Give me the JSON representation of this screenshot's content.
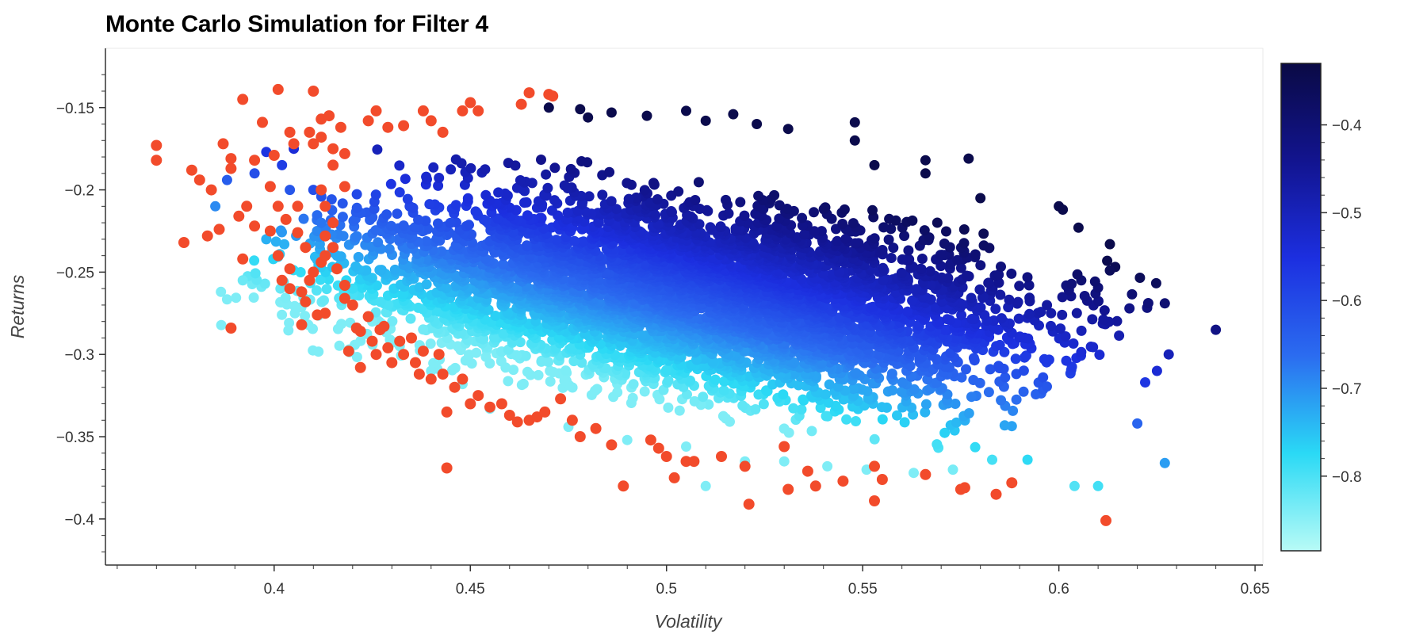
{
  "chart_data": {
    "type": "scatter",
    "title": "Monte Carlo Simulation for Filter 4",
    "xlabel": "Volatility",
    "ylabel": "Returns",
    "xlim": [
      0.357,
      0.652
    ],
    "ylim": [
      -0.428,
      -0.114
    ],
    "x_ticks": [
      0.4,
      0.45,
      0.5,
      0.55,
      0.6,
      0.65
    ],
    "x_tick_labels": [
      "0.4",
      "0.45",
      "0.5",
      "0.55",
      "0.6",
      "0.65"
    ],
    "y_ticks": [
      -0.15,
      -0.2,
      -0.25,
      -0.3,
      -0.35,
      -0.4
    ],
    "y_tick_labels": [
      "−0.15",
      "−0.2",
      "−0.25",
      "−0.3",
      "−0.35",
      "−0.4"
    ],
    "grid": false,
    "legend": "none",
    "colorbar": {
      "orientation": "vertical",
      "placement": "right",
      "range": [
        -0.885,
        -0.33
      ],
      "ticks": [
        -0.4,
        -0.5,
        -0.6,
        -0.7,
        -0.8
      ],
      "tick_labels": [
        "−0.4",
        "−0.5",
        "−0.6",
        "−0.7",
        "−0.8"
      ],
      "colors": [
        "#b8fbf6",
        "#2ad9f5",
        "#2b6cf0",
        "#1c2fe0",
        "#12148f",
        "#0a0a45"
      ]
    },
    "series": [
      {
        "marker_color": "colormap",
        "description": "simulated portfolios, colored by colorbar value",
        "center": [
          0.505,
          -0.265
        ],
        "points": [
          [
            0.47,
            -0.15
          ],
          [
            0.478,
            -0.151
          ],
          [
            0.48,
            -0.156
          ],
          [
            0.486,
            -0.153
          ],
          [
            0.495,
            -0.155
          ],
          [
            0.505,
            -0.152
          ],
          [
            0.51,
            -0.158
          ],
          [
            0.517,
            -0.154
          ],
          [
            0.523,
            -0.16
          ],
          [
            0.531,
            -0.163
          ],
          [
            0.548,
            -0.159
          ],
          [
            0.548,
            -0.17
          ],
          [
            0.553,
            -0.185
          ],
          [
            0.566,
            -0.182
          ],
          [
            0.577,
            -0.181
          ],
          [
            0.566,
            -0.19
          ],
          [
            0.58,
            -0.205
          ],
          [
            0.6,
            -0.21
          ],
          [
            0.601,
            -0.212
          ],
          [
            0.605,
            -0.223
          ],
          [
            0.613,
            -0.233
          ],
          [
            0.613,
            -0.249
          ],
          [
            0.618,
            -0.272
          ],
          [
            0.627,
            -0.269
          ],
          [
            0.64,
            -0.285
          ],
          [
            0.628,
            -0.3
          ],
          [
            0.625,
            -0.31
          ],
          [
            0.622,
            -0.317
          ],
          [
            0.62,
            -0.342
          ],
          [
            0.627,
            -0.366
          ],
          [
            0.61,
            -0.38
          ],
          [
            0.604,
            -0.38
          ],
          [
            0.592,
            -0.364
          ],
          [
            0.583,
            -0.364
          ],
          [
            0.573,
            -0.37
          ],
          [
            0.563,
            -0.372
          ],
          [
            0.551,
            -0.37
          ],
          [
            0.541,
            -0.368
          ],
          [
            0.53,
            -0.365
          ],
          [
            0.52,
            -0.365
          ],
          [
            0.51,
            -0.38
          ],
          [
            0.505,
            -0.356
          ],
          [
            0.49,
            -0.352
          ],
          [
            0.475,
            -0.344
          ],
          [
            0.465,
            -0.34
          ],
          [
            0.455,
            -0.333
          ],
          [
            0.448,
            -0.318
          ],
          [
            0.44,
            -0.31
          ],
          [
            0.432,
            -0.295
          ],
          [
            0.425,
            -0.28
          ],
          [
            0.42,
            -0.26
          ],
          [
            0.416,
            -0.24
          ],
          [
            0.412,
            -0.22
          ],
          [
            0.41,
            -0.2
          ],
          [
            0.404,
            -0.2
          ],
          [
            0.398,
            -0.23
          ],
          [
            0.392,
            -0.255
          ],
          [
            0.385,
            -0.21
          ],
          [
            0.388,
            -0.194
          ],
          [
            0.395,
            -0.19
          ],
          [
            0.402,
            -0.185
          ],
          [
            0.398,
            -0.177
          ],
          [
            0.405,
            -0.175
          ]
        ]
      },
      {
        "marker_color": "#f24b2b",
        "description": "highlighted portfolios (red)",
        "points": [
          [
            0.37,
            -0.173
          ],
          [
            0.37,
            -0.182
          ],
          [
            0.379,
            -0.188
          ],
          [
            0.381,
            -0.194
          ],
          [
            0.384,
            -0.2
          ],
          [
            0.387,
            -0.172
          ],
          [
            0.389,
            -0.181
          ],
          [
            0.389,
            -0.187
          ],
          [
            0.392,
            -0.145
          ],
          [
            0.395,
            -0.182
          ],
          [
            0.393,
            -0.21
          ],
          [
            0.391,
            -0.216
          ],
          [
            0.395,
            -0.222
          ],
          [
            0.377,
            -0.232
          ],
          [
            0.383,
            -0.228
          ],
          [
            0.386,
            -0.224
          ],
          [
            0.392,
            -0.242
          ],
          [
            0.389,
            -0.284
          ],
          [
            0.397,
            -0.159
          ],
          [
            0.4,
            -0.179
          ],
          [
            0.401,
            -0.139
          ],
          [
            0.404,
            -0.165
          ],
          [
            0.405,
            -0.172
          ],
          [
            0.399,
            -0.198
          ],
          [
            0.401,
            -0.21
          ],
          [
            0.403,
            -0.218
          ],
          [
            0.406,
            -0.21
          ],
          [
            0.399,
            -0.225
          ],
          [
            0.401,
            -0.24
          ],
          [
            0.404,
            -0.248
          ],
          [
            0.406,
            -0.226
          ],
          [
            0.408,
            -0.235
          ],
          [
            0.402,
            -0.255
          ],
          [
            0.404,
            -0.26
          ],
          [
            0.407,
            -0.262
          ],
          [
            0.409,
            -0.255
          ],
          [
            0.41,
            -0.25
          ],
          [
            0.412,
            -0.244
          ],
          [
            0.408,
            -0.268
          ],
          [
            0.411,
            -0.276
          ],
          [
            0.407,
            -0.282
          ],
          [
            0.413,
            -0.275
          ],
          [
            0.41,
            -0.14
          ],
          [
            0.409,
            -0.165
          ],
          [
            0.41,
            -0.172
          ],
          [
            0.412,
            -0.157
          ],
          [
            0.414,
            -0.155
          ],
          [
            0.412,
            -0.168
          ],
          [
            0.415,
            -0.175
          ],
          [
            0.417,
            -0.162
          ],
          [
            0.415,
            -0.185
          ],
          [
            0.418,
            -0.178
          ],
          [
            0.418,
            -0.198
          ],
          [
            0.412,
            -0.2
          ],
          [
            0.413,
            -0.21
          ],
          [
            0.415,
            -0.22
          ],
          [
            0.413,
            -0.228
          ],
          [
            0.415,
            -0.235
          ],
          [
            0.413,
            -0.24
          ],
          [
            0.416,
            -0.248
          ],
          [
            0.418,
            -0.258
          ],
          [
            0.418,
            -0.266
          ],
          [
            0.42,
            -0.27
          ],
          [
            0.421,
            -0.284
          ],
          [
            0.419,
            -0.298
          ],
          [
            0.422,
            -0.308
          ],
          [
            0.422,
            -0.286
          ],
          [
            0.424,
            -0.277
          ],
          [
            0.425,
            -0.292
          ],
          [
            0.427,
            -0.285
          ],
          [
            0.426,
            -0.3
          ],
          [
            0.428,
            -0.283
          ],
          [
            0.429,
            -0.296
          ],
          [
            0.43,
            -0.305
          ],
          [
            0.432,
            -0.292
          ],
          [
            0.433,
            -0.3
          ],
          [
            0.435,
            -0.29
          ],
          [
            0.436,
            -0.305
          ],
          [
            0.437,
            -0.312
          ],
          [
            0.438,
            -0.298
          ],
          [
            0.44,
            -0.315
          ],
          [
            0.442,
            -0.3
          ],
          [
            0.443,
            -0.312
          ],
          [
            0.444,
            -0.335
          ],
          [
            0.444,
            -0.369
          ],
          [
            0.446,
            -0.32
          ],
          [
            0.448,
            -0.315
          ],
          [
            0.45,
            -0.33
          ],
          [
            0.452,
            -0.325
          ],
          [
            0.455,
            -0.332
          ],
          [
            0.458,
            -0.33
          ],
          [
            0.46,
            -0.337
          ],
          [
            0.462,
            -0.341
          ],
          [
            0.465,
            -0.34
          ],
          [
            0.467,
            -0.338
          ],
          [
            0.469,
            -0.335
          ],
          [
            0.473,
            -0.327
          ],
          [
            0.476,
            -0.34
          ],
          [
            0.478,
            -0.35
          ],
          [
            0.482,
            -0.345
          ],
          [
            0.486,
            -0.355
          ],
          [
            0.489,
            -0.38
          ],
          [
            0.496,
            -0.352
          ],
          [
            0.498,
            -0.357
          ],
          [
            0.5,
            -0.362
          ],
          [
            0.502,
            -0.375
          ],
          [
            0.505,
            -0.365
          ],
          [
            0.507,
            -0.365
          ],
          [
            0.514,
            -0.362
          ],
          [
            0.52,
            -0.368
          ],
          [
            0.521,
            -0.391
          ],
          [
            0.53,
            -0.356
          ],
          [
            0.531,
            -0.382
          ],
          [
            0.536,
            -0.371
          ],
          [
            0.538,
            -0.38
          ],
          [
            0.545,
            -0.377
          ],
          [
            0.553,
            -0.368
          ],
          [
            0.553,
            -0.389
          ],
          [
            0.555,
            -0.376
          ],
          [
            0.566,
            -0.373
          ],
          [
            0.575,
            -0.382
          ],
          [
            0.576,
            -0.381
          ],
          [
            0.584,
            -0.385
          ],
          [
            0.588,
            -0.378
          ],
          [
            0.612,
            -0.401
          ],
          [
            0.424,
            -0.158
          ],
          [
            0.426,
            -0.152
          ],
          [
            0.429,
            -0.162
          ],
          [
            0.433,
            -0.161
          ],
          [
            0.438,
            -0.152
          ],
          [
            0.44,
            -0.158
          ],
          [
            0.443,
            -0.165
          ],
          [
            0.448,
            -0.152
          ],
          [
            0.45,
            -0.147
          ],
          [
            0.452,
            -0.152
          ],
          [
            0.463,
            -0.148
          ],
          [
            0.465,
            -0.141
          ],
          [
            0.47,
            -0.142
          ],
          [
            0.471,
            -0.143
          ]
        ]
      }
    ]
  }
}
